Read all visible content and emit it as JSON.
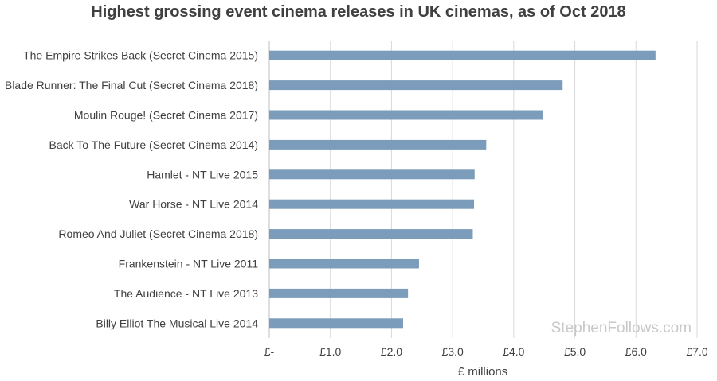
{
  "chart_data": {
    "type": "bar",
    "orientation": "horizontal",
    "title": "Highest grossing event cinema releases in UK cinemas, as of Oct 2018",
    "categories": [
      "The Empire Strikes Back (Secret Cinema 2015)",
      "Blade Runner: The Final Cut (Secret Cinema 2018)",
      "Moulin Rouge! (Secret Cinema 2017)",
      "Back To The Future (Secret Cinema 2014)",
      "Hamlet - NT Live 2015",
      "War Horse - NT Live 2014",
      "Romeo And Juliet (Secret Cinema 2018)",
      "Frankenstein - NT Live 2011",
      "The Audience - NT Live 2013",
      "Billy Elliot The Musical Live 2014"
    ],
    "values": [
      6.32,
      4.8,
      4.48,
      3.55,
      3.36,
      3.35,
      3.33,
      2.45,
      2.27,
      2.19
    ],
    "xlabel": "£ millions",
    "xlim": [
      0,
      7
    ],
    "xticks": [
      0,
      1,
      2,
      3,
      4,
      5,
      6,
      7
    ],
    "xtick_labels": [
      "£-",
      "£1.0",
      "£2.0",
      "£3.0",
      "£4.0",
      "£5.0",
      "£6.0",
      "£7.0"
    ],
    "bar_color": "#7b9cba",
    "grid": true,
    "watermark": "StephenFollows.com"
  }
}
